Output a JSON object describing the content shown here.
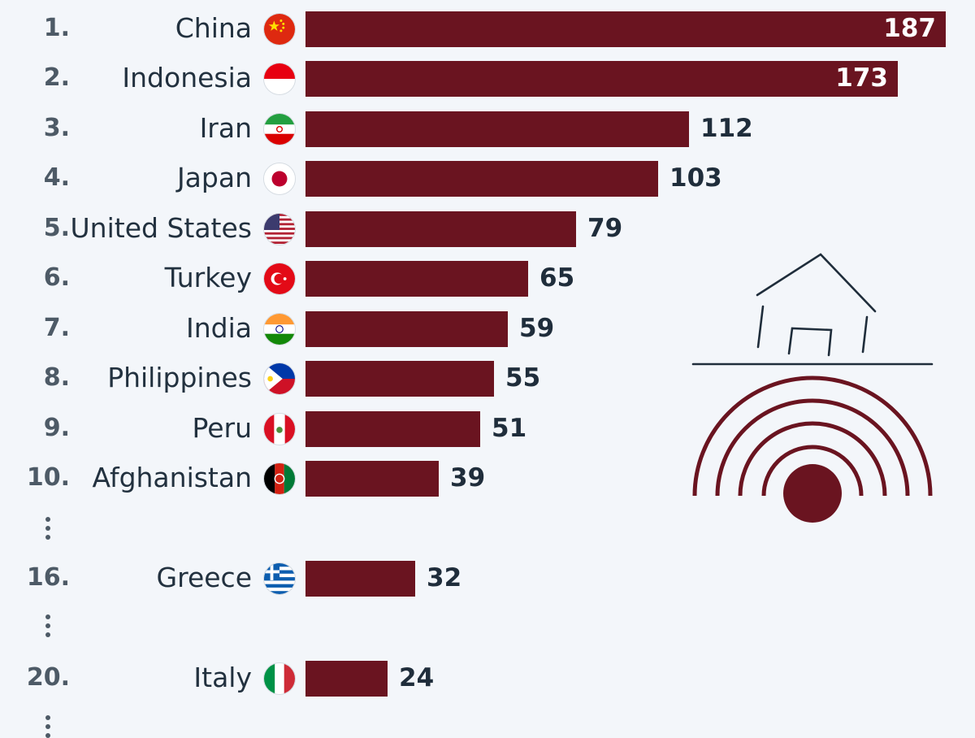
{
  "colors": {
    "bar": "#6a1420",
    "rank": "#4d5a66",
    "label": "#22313f",
    "value": "#1f2d3b",
    "icon_line": "#1f2d3b"
  },
  "chart_data": {
    "type": "bar",
    "orientation": "horizontal",
    "categories": [
      "China",
      "Indonesia",
      "Iran",
      "Japan",
      "United States",
      "Turkey",
      "India",
      "Philippines",
      "Peru",
      "Afghanistan",
      "Greece",
      "Italy"
    ],
    "ranks": [
      "1.",
      "2.",
      "3.",
      "4.",
      "5.",
      "6.",
      "7.",
      "8.",
      "9.",
      "10.",
      "16.",
      "20."
    ],
    "values": [
      187,
      173,
      112,
      103,
      79,
      65,
      59,
      55,
      51,
      39,
      32,
      24
    ],
    "flags": [
      "china-flag-icon",
      "indonesia-flag-icon",
      "iran-flag-icon",
      "japan-flag-icon",
      "united-states-flag-icon",
      "turkey-flag-icon",
      "india-flag-icon",
      "philippines-flag-icon",
      "peru-flag-icon",
      "afghanistan-flag-icon",
      "greece-flag-icon",
      "italy-flag-icon"
    ],
    "gaps_after_rank": [
      "10.",
      "16.",
      "20."
    ],
    "xlim": [
      0,
      187
    ],
    "title": "",
    "xlabel": "",
    "ylabel": "",
    "grid": false,
    "legend": "none"
  },
  "decoration": {
    "icon": "earthquake-house-icon"
  }
}
